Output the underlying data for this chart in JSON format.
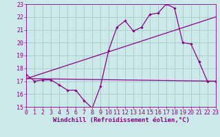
{
  "xlabel": "Windchill (Refroidissement éolien,°C)",
  "xlim": [
    0,
    23
  ],
  "ylim": [
    15,
    23
  ],
  "yticks": [
    15,
    16,
    17,
    18,
    19,
    20,
    21,
    22,
    23
  ],
  "xticks": [
    0,
    1,
    2,
    3,
    4,
    5,
    6,
    7,
    8,
    9,
    10,
    11,
    12,
    13,
    14,
    15,
    16,
    17,
    18,
    19,
    20,
    21,
    22,
    23
  ],
  "bg_color": "#cce8e8",
  "line_color": "#880088",
  "grid_color": "#aacccc",
  "line1_x": [
    0,
    1,
    2,
    3,
    4,
    5,
    6,
    7,
    8,
    9,
    10,
    11,
    12,
    13,
    14,
    15,
    16,
    17,
    18,
    19,
    20,
    21,
    22,
    23
  ],
  "line1_y": [
    17.5,
    17.0,
    17.1,
    17.1,
    16.7,
    16.3,
    16.3,
    15.5,
    14.9,
    16.6,
    19.4,
    21.2,
    21.7,
    20.9,
    21.2,
    22.2,
    22.3,
    23.0,
    22.7,
    20.0,
    19.9,
    18.5,
    17.0,
    17.0
  ],
  "line2_x": [
    0,
    23
  ],
  "line2_y": [
    17.2,
    17.0
  ],
  "line3_x": [
    0,
    23
  ],
  "line3_y": [
    17.2,
    22.0
  ],
  "xlabel_fontsize": 6.5,
  "tick_fontsize": 6
}
